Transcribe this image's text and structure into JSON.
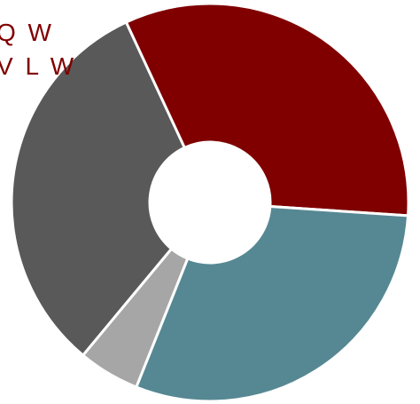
{
  "chart_data": {
    "type": "pie",
    "donut": true,
    "title": "",
    "legend": "none",
    "labels": [
      {
        "text": "Q W"
      },
      {
        "text": "V L W"
      }
    ],
    "slices": [
      {
        "value": 33,
        "color": "#800000"
      },
      {
        "value": 30,
        "color": "#568893"
      },
      {
        "value": 5,
        "color": "#a6a6a6"
      },
      {
        "value": 32,
        "color": "#595959"
      }
    ]
  }
}
